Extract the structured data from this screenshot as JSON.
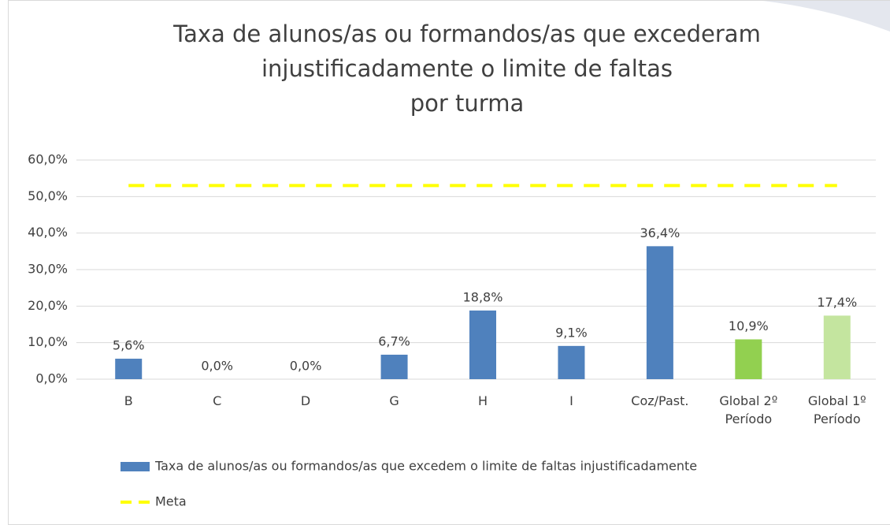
{
  "chart_data": {
    "type": "bar",
    "title": [
      "Taxa de alunos/as ou formandos/as que excederam",
      "injustificadamente o limite de faltas",
      "por turma"
    ],
    "categories": [
      "B",
      "C",
      "D",
      "G",
      "H",
      "I",
      "Coz/Past.",
      "Global 2º Período",
      "Global 1º Período"
    ],
    "series": [
      {
        "name": "Taxa de alunos/as ou formandos/as que excedem o limite de faltas injustificadamente",
        "type": "bar",
        "color": "#4f81bd",
        "colors": [
          "#4f81bd",
          "#4f81bd",
          "#4f81bd",
          "#4f81bd",
          "#4f81bd",
          "#4f81bd",
          "#4f81bd",
          "#92d050",
          "#c4e59f"
        ],
        "values": [
          5.6,
          0,
          0,
          6.7,
          18.8,
          9.1,
          36.4,
          10.9,
          17.4
        ],
        "value_labels": [
          "5,6%",
          "0,0%",
          "0,0%",
          "6,7%",
          "18,8%",
          "9,1%",
          "36,4%",
          "10,9%",
          "17,4%"
        ]
      },
      {
        "name": "Meta",
        "type": "line",
        "color": "#ffff00",
        "dashed": true,
        "values": [
          53,
          53,
          53,
          53,
          53,
          53,
          53,
          53,
          53
        ]
      }
    ],
    "ylim": [
      0,
      60
    ],
    "yticks": [
      {
        "value": 0,
        "label": "0,0%"
      },
      {
        "value": 10,
        "label": "10,0%"
      },
      {
        "value": 20,
        "label": "20,0%"
      },
      {
        "value": 30,
        "label": "30,0%"
      },
      {
        "value": 40,
        "label": "40,0%"
      },
      {
        "value": 50,
        "label": "50,0%"
      },
      {
        "value": 60,
        "label": "60,0%"
      }
    ],
    "grid": true
  }
}
